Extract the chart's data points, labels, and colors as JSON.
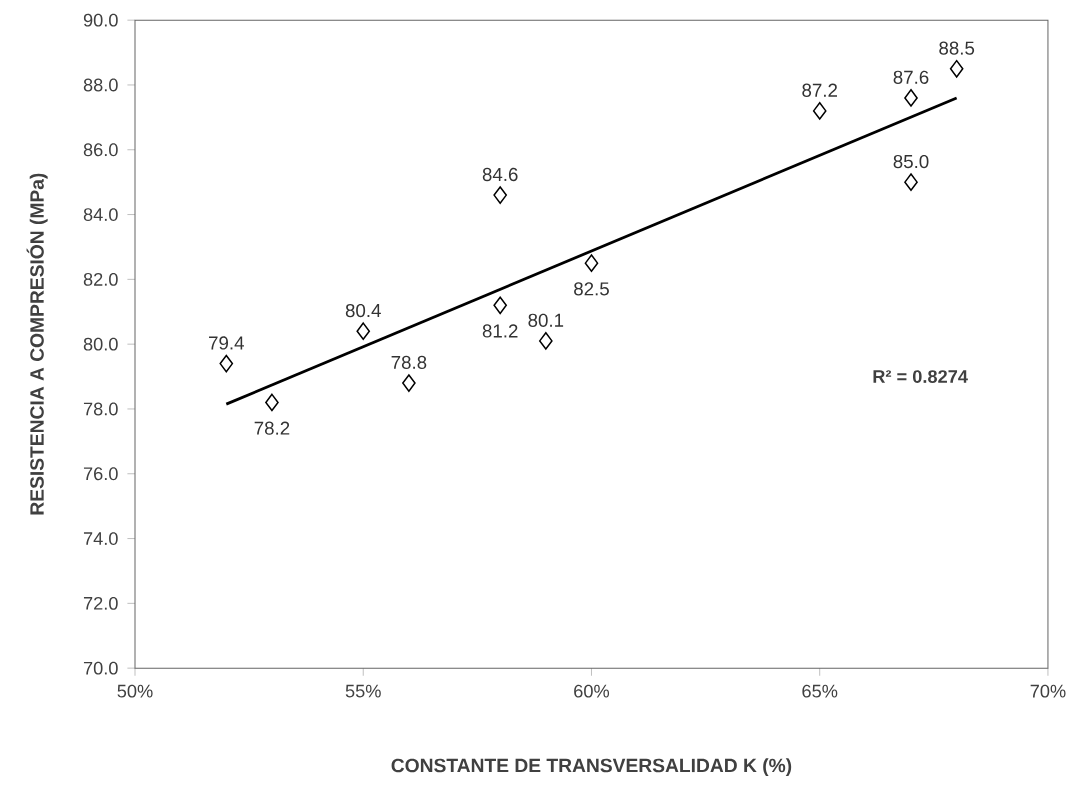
{
  "chart_data": {
    "type": "scatter",
    "xlabel": "CONSTANTE DE TRANSVERSALIDAD K (%)",
    "ylabel": "RESISTENCIA A COMPRESIÓN (MPa)",
    "x": [
      52,
      53,
      55,
      56,
      58,
      58,
      59,
      60,
      65,
      67,
      67,
      68
    ],
    "series": [
      {
        "color": "#000000",
        "marker": "diamond",
        "values": [
          79.4,
          78.2,
          80.4,
          78.8,
          84.6,
          81.2,
          80.1,
          82.5,
          87.2,
          87.6,
          85.0,
          88.5
        ],
        "value_labels": [
          "79.4",
          "78.2",
          "80.4",
          "78.8",
          "84.6",
          "81.2",
          "80.1",
          "82.5",
          "87.2",
          "87.6",
          "85.0",
          "88.5"
        ]
      },
      {
        "type": "line",
        "color": "#000000",
        "x": [
          52,
          68
        ],
        "values": [
          78.15,
          87.6
        ]
      }
    ],
    "annotations": [
      "R² = 0.8274"
    ],
    "xlim": [
      50,
      70
    ],
    "ylim": [
      70,
      90
    ],
    "xticks": [
      {
        "value": 50,
        "label": "50%"
      },
      {
        "value": 55,
        "label": "55%"
      },
      {
        "value": 60,
        "label": "60%"
      },
      {
        "value": 65,
        "label": "65%"
      },
      {
        "value": 70,
        "label": "70%"
      }
    ],
    "yticks": [
      {
        "value": 70,
        "label": "70.0"
      },
      {
        "value": 72,
        "label": "72.0"
      },
      {
        "value": 74,
        "label": "74.0"
      },
      {
        "value": 76,
        "label": "76.0"
      },
      {
        "value": 78,
        "label": "78.0"
      },
      {
        "value": 80,
        "label": "80.0"
      },
      {
        "value": 82,
        "label": "82.0"
      },
      {
        "value": 84,
        "label": "84.0"
      },
      {
        "value": 86,
        "label": "86.0"
      },
      {
        "value": 88,
        "label": "88.0"
      },
      {
        "value": 90,
        "label": "90.0"
      }
    ],
    "grid": false
  }
}
